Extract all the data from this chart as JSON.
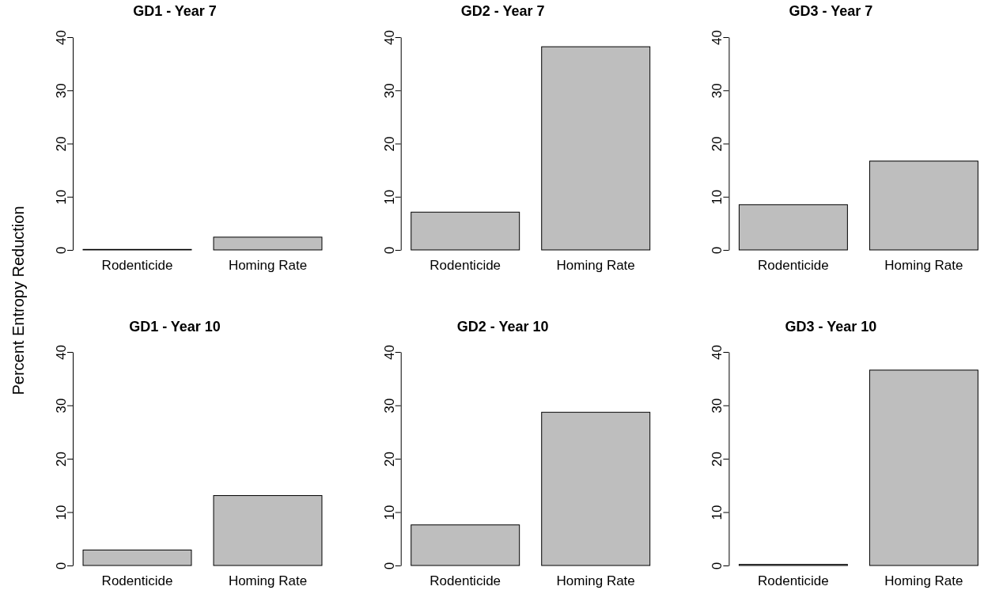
{
  "chart_data": [
    {
      "type": "bar",
      "title": "GD1 - Year 7",
      "ylabel": "Percent Entropy Reduction",
      "categories": [
        "Rodenticide",
        "Homing Rate"
      ],
      "values": [
        0.1,
        2.4
      ],
      "color": "#bebebe",
      "ylim": [
        0,
        40
      ],
      "yticks": [
        0,
        10,
        20,
        30,
        40
      ],
      "grid": false
    },
    {
      "type": "bar",
      "title": "GD2 - Year 7",
      "categories": [
        "Rodenticide",
        "Homing Rate"
      ],
      "values": [
        7.1,
        38.2
      ],
      "color": "#bebebe",
      "ylim": [
        0,
        40
      ],
      "yticks": [
        0,
        10,
        20,
        30,
        40
      ],
      "grid": false
    },
    {
      "type": "bar",
      "title": "GD3 - Year 7",
      "categories": [
        "Rodenticide",
        "Homing Rate"
      ],
      "values": [
        8.5,
        16.7
      ],
      "color": "#bebebe",
      "ylim": [
        0,
        40
      ],
      "yticks": [
        0,
        10,
        20,
        30,
        40
      ],
      "grid": false
    },
    {
      "type": "bar",
      "title": "GD1 - Year 10",
      "categories": [
        "Rodenticide",
        "Homing Rate"
      ],
      "values": [
        2.9,
        13.1
      ],
      "color": "#bebebe",
      "ylim": [
        0,
        40
      ],
      "yticks": [
        0,
        10,
        20,
        30,
        40
      ],
      "grid": false
    },
    {
      "type": "bar",
      "title": "GD2 - Year 10",
      "categories": [
        "Rodenticide",
        "Homing Rate"
      ],
      "values": [
        7.6,
        28.7
      ],
      "color": "#bebebe",
      "ylim": [
        0,
        40
      ],
      "yticks": [
        0,
        10,
        20,
        30,
        40
      ],
      "grid": false
    },
    {
      "type": "bar",
      "title": "GD3 - Year 10",
      "categories": [
        "Rodenticide",
        "Homing Rate"
      ],
      "values": [
        0.2,
        36.6
      ],
      "color": "#bebebe",
      "ylim": [
        0,
        40
      ],
      "yticks": [
        0,
        10,
        20,
        30,
        40
      ],
      "grid": false
    }
  ]
}
